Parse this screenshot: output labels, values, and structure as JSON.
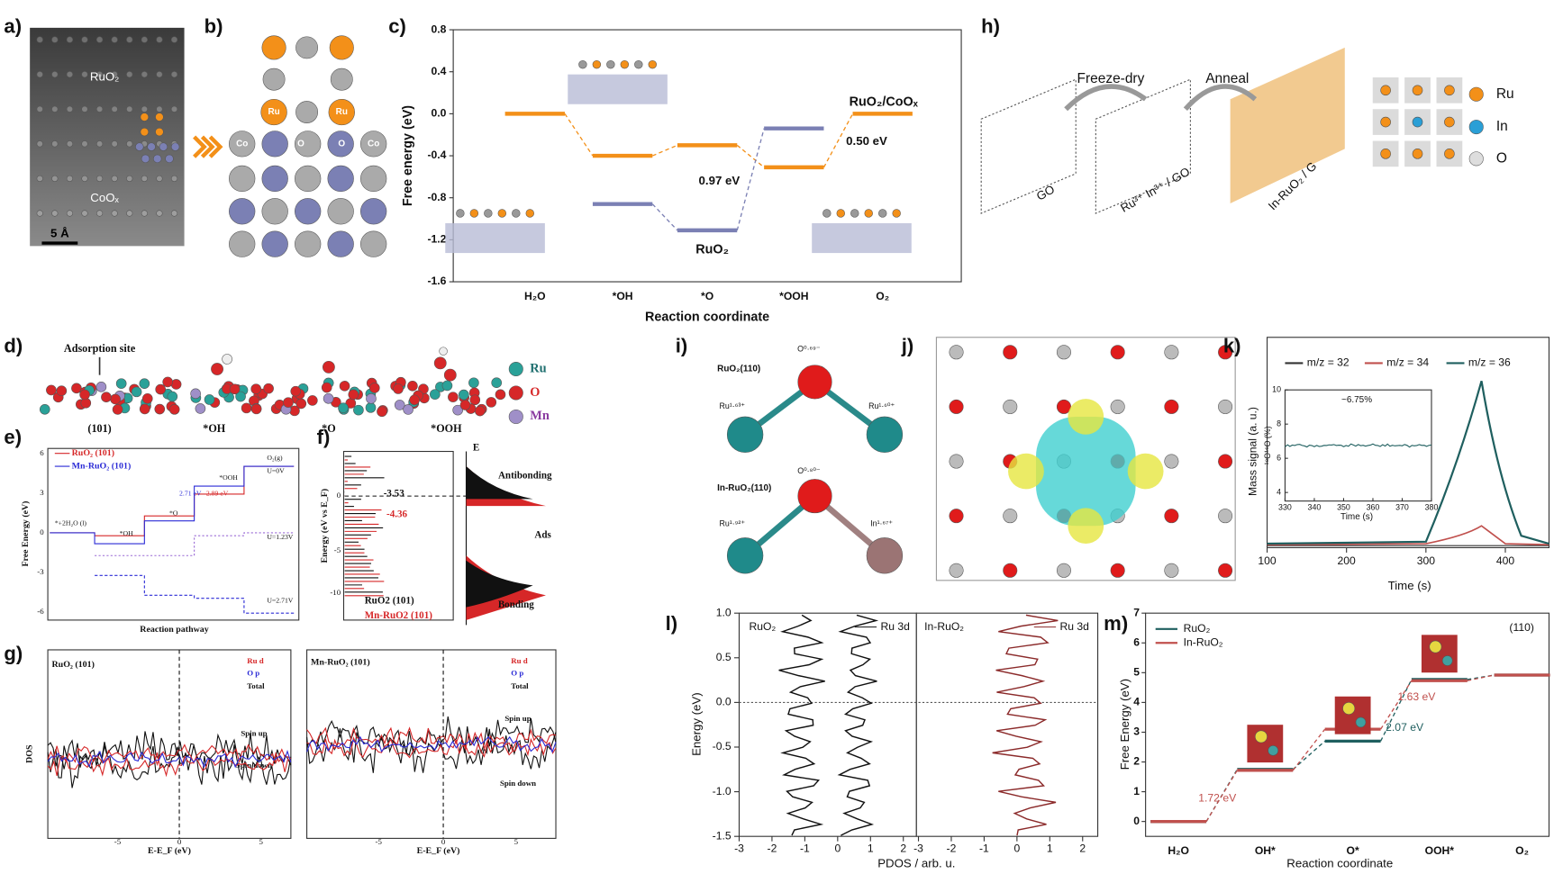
{
  "panel_a": {
    "label": "a)",
    "top": "RuO₂",
    "bottom": "CoOₓ",
    "scale": "5 Å"
  },
  "panel_b": {
    "label": "b)",
    "atoms": [
      "Ru",
      "Ru",
      "Co",
      "O",
      "O",
      "Co"
    ]
  },
  "panel_c": {
    "label": "c)",
    "ylabel": "Free energy (eV)",
    "xlabel": "Reaction coordinate",
    "categories": [
      "H₂O",
      "*OH",
      "*O",
      "*OOH",
      "O₂"
    ],
    "ylim": [
      -1.6,
      0.8
    ],
    "yticks": [
      0.8,
      0.4,
      {
        "value": 0,
        "label": "0.0"
      },
      -0.4,
      -0.8,
      -1.2,
      -1.6
    ],
    "series": [
      {
        "name": "RuO₂/CoOₓ",
        "color": "#f39019",
        "values": [
          0,
          -0.4,
          -0.3,
          -0.51,
          0
        ]
      },
      {
        "name": "RuO₂",
        "color": "#7b80b4",
        "values": [
          null,
          -0.86,
          -1.11,
          -0.14,
          null
        ]
      }
    ],
    "annotations": [
      "0.97 eV",
      "0.50 eV"
    ]
  },
  "panel_h": {
    "label": "h)",
    "steps": [
      "Freeze-dry",
      "Anneal"
    ],
    "stages": [
      "GO",
      "Ru³⁺ In³⁺ / GO",
      "In-RuO₂ / G"
    ],
    "legend": [
      "Ru",
      "In",
      "O"
    ]
  },
  "panel_d": {
    "label": "d)",
    "site": "Adsorption site",
    "states": [
      "(101)",
      "*OH",
      "*O",
      "*OOH"
    ],
    "legend": [
      "Ru",
      "O",
      "Mn"
    ]
  },
  "panel_e": {
    "label": "e)",
    "legend": [
      "RuO₂ (101)",
      "Mn-RuO₂ (101)"
    ],
    "ylabel": "Free Energy (eV)",
    "xlabel": "Reaction pathway",
    "yticks": [
      6,
      3,
      0,
      -3,
      -6
    ],
    "notes": [
      "*+2H₂O (l)",
      "*OH",
      "*O",
      "*OOH",
      "O₂(g)",
      "U=0V",
      "2.71 eV",
      "2.89 eV",
      "U=1.23V",
      "U=2.71V"
    ]
  },
  "panel_f": {
    "label": "f)",
    "ylabel": "Energy (eV vs E_F)",
    "yticks": [
      0,
      -5,
      -10
    ],
    "values": [
      -3.53,
      -4.36
    ],
    "legend": [
      "RuO2 (101)",
      "Mn-RuO2 (101)"
    ],
    "bands": [
      "E",
      "Antibonding",
      "Ads",
      "Bonding"
    ]
  },
  "panel_g": {
    "label": "g)",
    "titles": [
      "RuO₂ (101)",
      "Mn-RuO₂ (101)"
    ],
    "legend": [
      "Ru d",
      "O p",
      "Total"
    ],
    "spin": [
      "Spin up",
      "Spin down"
    ],
    "ylabel": "DOS",
    "xlabel": "E-E_F (eV)",
    "xticks": [
      -5,
      0,
      5
    ]
  },
  "panel_i": {
    "label": "i)",
    "top": "RuO₂(110)",
    "bottom": "In-RuO₂(110)",
    "charges": [
      "O⁰·⁶⁹⁻",
      "Ru¹·⁶³⁺",
      "Ru¹·⁶⁰⁺",
      "O⁰·⁸⁰⁻",
      "Ru¹·⁹²⁺",
      "In¹·⁶⁷⁺"
    ]
  },
  "panel_j": {
    "label": "j)"
  },
  "panel_k": {
    "label": "k)",
    "legend": [
      "m/z = 32",
      "m/z = 34",
      "m/z = 36"
    ],
    "ylabel": "Mass signal (a. u.)",
    "xlabel": "Time (s)",
    "xlim": [
      100,
      455
    ],
    "xticks": [
      100,
      200,
      300,
      400
    ],
    "inset": {
      "ylabel": "¹⁸O¹⁶O (%)",
      "xlabel": "Time (s)",
      "xlim": [
        330,
        380
      ],
      "xticks": [
        330,
        340,
        350,
        360,
        370,
        380
      ],
      "ylim": [
        3.5,
        10
      ],
      "yticks": [
        4,
        6,
        8,
        10
      ],
      "note": "~6.75%"
    }
  },
  "panel_l": {
    "label": "l)",
    "ylabel": "Energy (eV)",
    "xlabel": "PDOS / arb. u.",
    "ylim": [
      -1.5,
      1
    ],
    "yticks": [
      {
        "value": 1,
        "label": "1.0"
      },
      0.5,
      {
        "value": 0,
        "label": "0.0"
      },
      -0.5,
      {
        "value": -1,
        "label": "-1.0"
      },
      -1.5
    ],
    "xlim": [
      -3,
      2.4
    ],
    "xticks": [
      -3,
      -2,
      -1,
      0,
      1,
      2
    ],
    "panels": [
      "RuO₂",
      "In-RuO₂"
    ],
    "legend": [
      "Ru 3d",
      "Ru 3d"
    ]
  },
  "panel_m": {
    "label": "m)",
    "subtitle": "(110)",
    "ylabel": "Free Energy (eV)",
    "xlabel": "Reaction coordinate",
    "categories": [
      "H₂O",
      "OH*",
      "O*",
      "OOH*",
      "O₂"
    ],
    "ylim": [
      -0.5,
      7
    ],
    "yticks": [
      0,
      1,
      2,
      3,
      4,
      5,
      6,
      7
    ],
    "series": [
      {
        "name": "RuO₂",
        "color": "#1f5f5f",
        "values": [
          0,
          1.75,
          2.7,
          4.77,
          4.92
        ]
      },
      {
        "name": "In-RuO₂",
        "color": "#c0504d",
        "values": [
          0,
          1.72,
          3.1,
          4.73,
          4.92
        ]
      }
    ],
    "annotations": [
      "1.72 eV",
      "2.07 eV",
      "1.63 eV"
    ]
  }
}
